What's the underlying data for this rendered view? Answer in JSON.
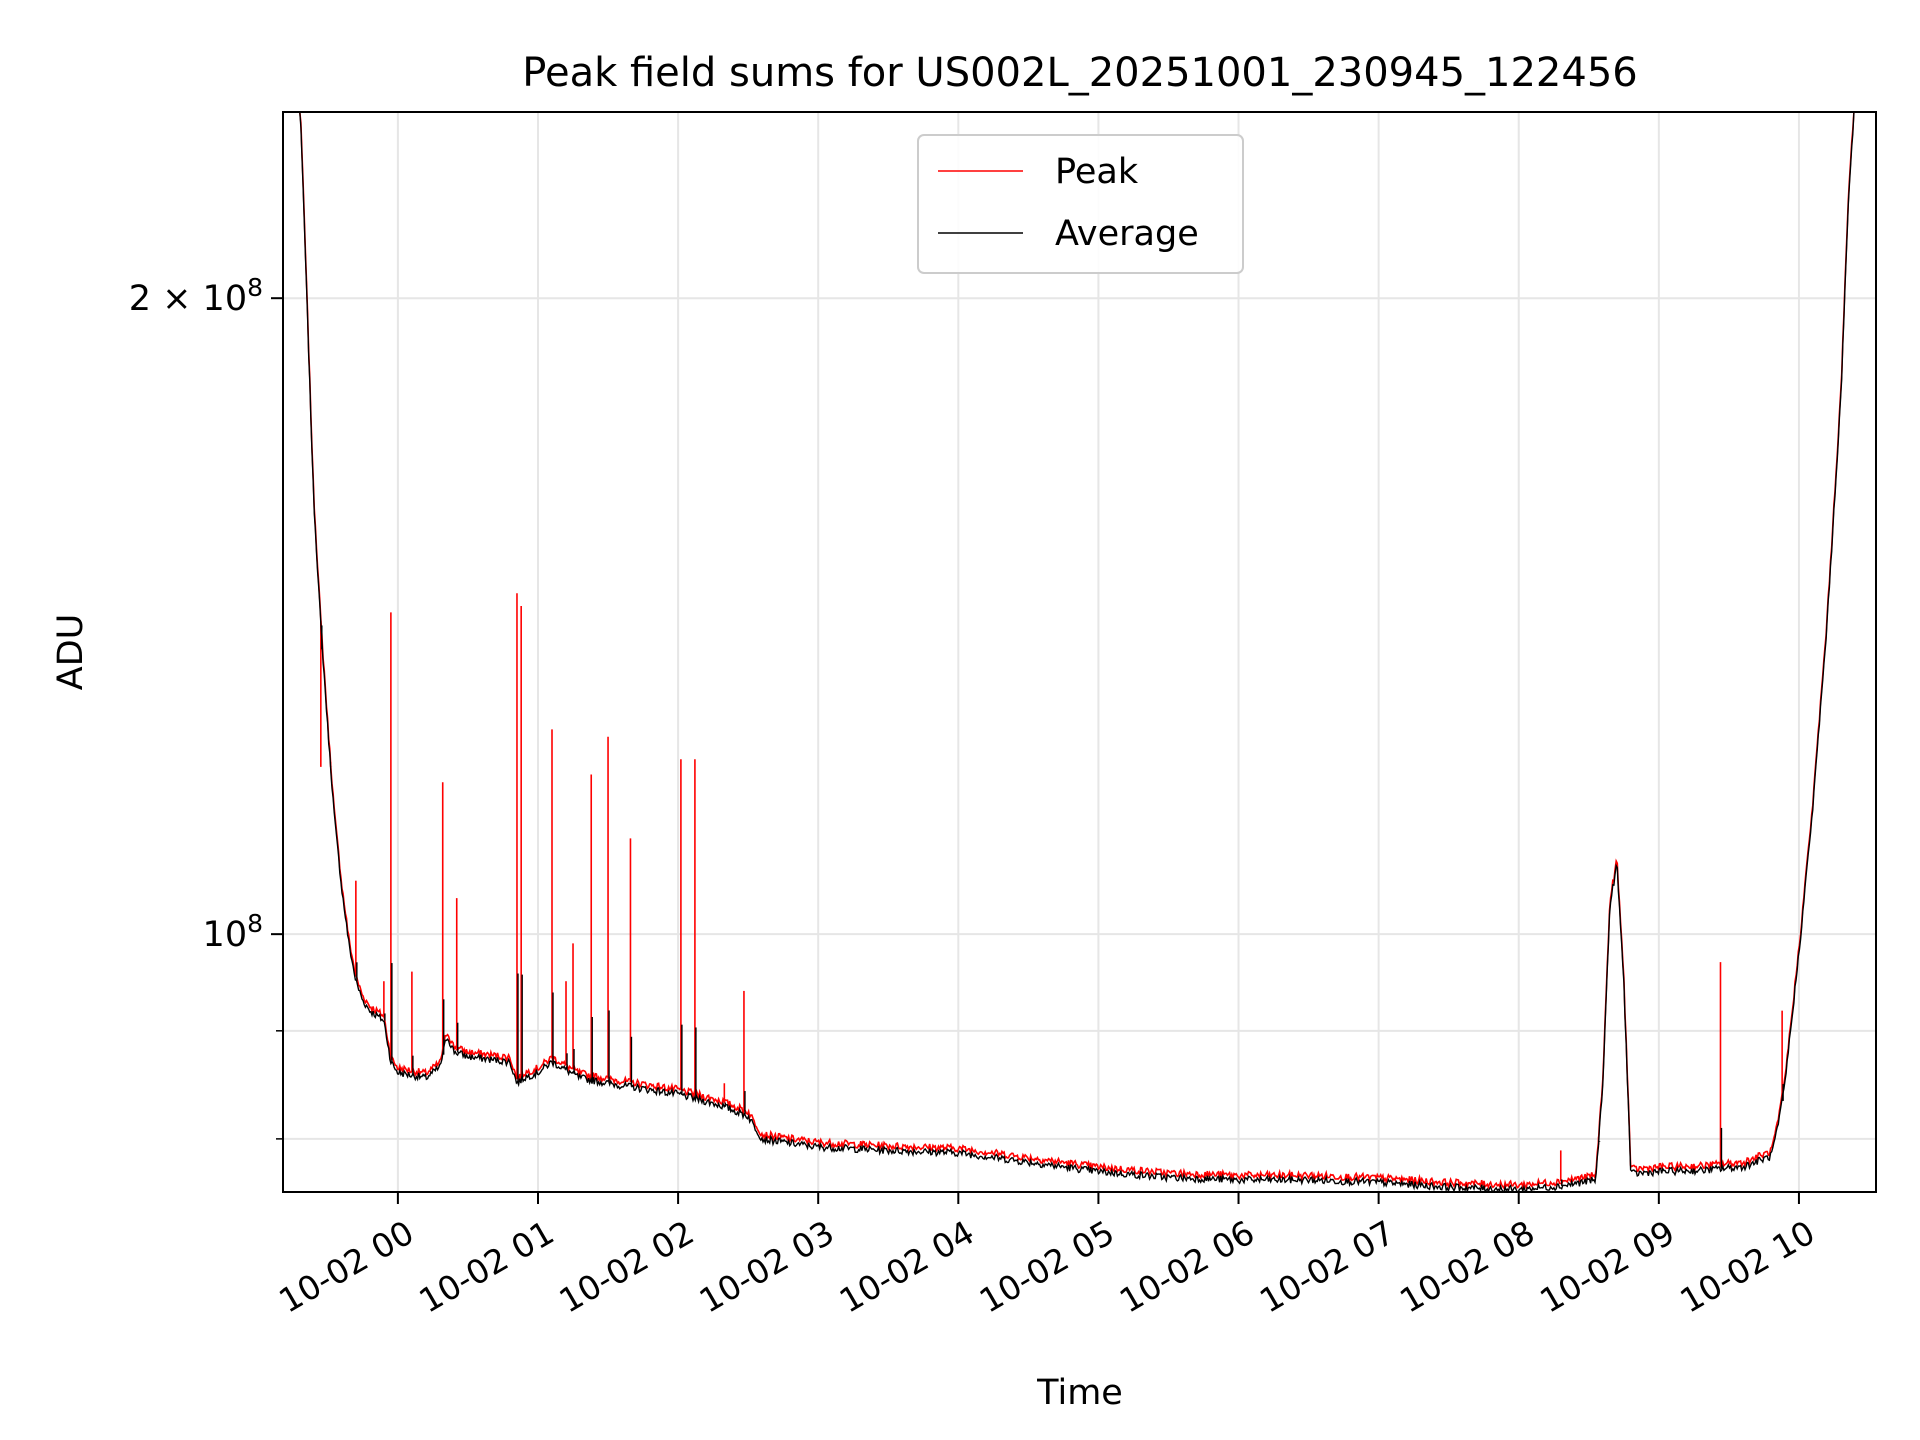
{
  "chart_data": {
    "type": "line",
    "title": "Peak field sums for US002L_20251001_230945_122456",
    "xlabel": "Time",
    "ylabel": "ADU",
    "y_scale": "log",
    "x_unit": "hours since 10-02 00:00",
    "xlim": [
      -0.82,
      10.55
    ],
    "ylim": [
      75500000,
      245000000
    ],
    "grid": true,
    "legend_position": "top-center",
    "x_ticks": [
      {
        "value": 0,
        "label": "10-02 00"
      },
      {
        "value": 1,
        "label": "10-02 01"
      },
      {
        "value": 2,
        "label": "10-02 02"
      },
      {
        "value": 3,
        "label": "10-02 03"
      },
      {
        "value": 4,
        "label": "10-02 04"
      },
      {
        "value": 5,
        "label": "10-02 05"
      },
      {
        "value": 6,
        "label": "10-02 06"
      },
      {
        "value": 7,
        "label": "10-02 07"
      },
      {
        "value": 8,
        "label": "10-02 08"
      },
      {
        "value": 9,
        "label": "10-02 09"
      },
      {
        "value": 10,
        "label": "10-02 10"
      }
    ],
    "y_ticks_major": [
      {
        "value": 100000000,
        "label_base": "10",
        "label_exp": "8"
      },
      {
        "value": 200000000,
        "label_base": "2 × 10",
        "label_exp": "8"
      }
    ],
    "y_ticks_minor": [
      80000000,
      90000000
    ],
    "series": [
      {
        "name": "Average",
        "color": "#000000",
        "x": [
          -0.7,
          -0.65,
          -0.6,
          -0.55,
          -0.5,
          -0.45,
          -0.4,
          -0.35,
          -0.3,
          -0.25,
          -0.2,
          -0.15,
          -0.1,
          -0.05,
          0.0,
          0.2,
          0.3,
          0.35,
          0.4,
          0.5,
          0.8,
          0.85,
          0.9,
          1.0,
          1.1,
          1.3,
          1.5,
          2.0,
          2.3,
          2.5,
          2.55,
          2.6,
          2.7,
          3.0,
          3.5,
          4.0,
          4.5,
          5.0,
          5.5,
          6.0,
          6.5,
          7.0,
          7.5,
          8.0,
          8.3,
          8.55,
          8.6,
          8.65,
          8.7,
          8.75,
          8.8,
          9.0,
          9.3,
          9.6,
          9.8,
          9.85,
          9.9,
          10.0,
          10.1,
          10.2,
          10.3,
          10.35,
          10.4
        ],
        "values": [
          250000000,
          200000000,
          160000000,
          140000000,
          125000000,
          113000000,
          105000000,
          99000000,
          95000000,
          93000000,
          92000000,
          91500000,
          91000000,
          87000000,
          86000000,
          85500000,
          86500000,
          89500000,
          88000000,
          87500000,
          87000000,
          85000000,
          85500000,
          86000000,
          87000000,
          85500000,
          85000000,
          84000000,
          83000000,
          82000000,
          81000000,
          80000000,
          79800000,
          79300000,
          79000000,
          78800000,
          78000000,
          77200000,
          76700000,
          76500000,
          76500000,
          76300000,
          75900000,
          75700000,
          76000000,
          76500000,
          85000000,
          103000000,
          108000000,
          95000000,
          77000000,
          77200000,
          77300000,
          77600000,
          78500000,
          81000000,
          85000000,
          98000000,
          115000000,
          140000000,
          180000000,
          220000000,
          250000000
        ]
      },
      {
        "name": "Peak",
        "color": "#ff0000",
        "offset_fraction": 0.005,
        "spikes": [
          {
            "x": -0.55,
            "y": 120000000
          },
          {
            "x": -0.48,
            "y": 120000000
          },
          {
            "x": -0.3,
            "y": 106000000
          },
          {
            "x": -0.1,
            "y": 95000000
          },
          {
            "x": -0.05,
            "y": 142000000
          },
          {
            "x": 0.1,
            "y": 96000000
          },
          {
            "x": 0.32,
            "y": 118000000
          },
          {
            "x": 0.42,
            "y": 104000000
          },
          {
            "x": 0.85,
            "y": 145000000
          },
          {
            "x": 0.88,
            "y": 143000000
          },
          {
            "x": 1.1,
            "y": 125000000
          },
          {
            "x": 1.2,
            "y": 95000000
          },
          {
            "x": 1.25,
            "y": 99000000
          },
          {
            "x": 1.38,
            "y": 119000000
          },
          {
            "x": 1.5,
            "y": 124000000
          },
          {
            "x": 1.66,
            "y": 111000000
          },
          {
            "x": 2.02,
            "y": 121000000
          },
          {
            "x": 2.12,
            "y": 121000000
          },
          {
            "x": 2.33,
            "y": 85000000
          },
          {
            "x": 2.47,
            "y": 94000000
          },
          {
            "x": 8.3,
            "y": 79000000
          },
          {
            "x": 8.57,
            "y": 79500000
          },
          {
            "x": 9.44,
            "y": 97000000
          },
          {
            "x": 9.88,
            "y": 92000000
          }
        ]
      }
    ]
  }
}
